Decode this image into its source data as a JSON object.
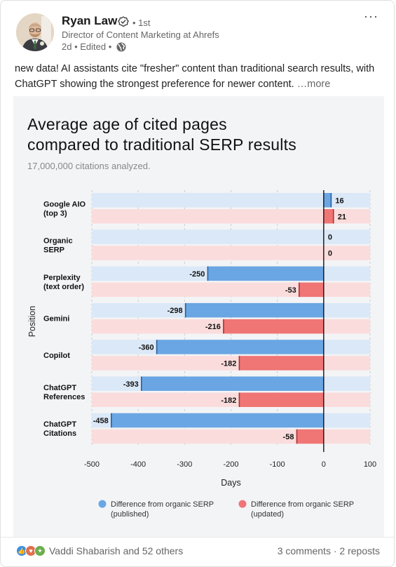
{
  "post": {
    "author": "Ryan Law",
    "degree": "• 1st",
    "headline": "Director of Content Marketing at Ahrefs",
    "meta": "2d • Edited •",
    "text": "new data! AI assistants cite \"fresher\" content than traditional search results, with ChatGPT showing the strongest preference for newer content.",
    "see_more": "…more"
  },
  "chart": {
    "title_line1": "Average age of cited pages",
    "title_line2": "compared to traditional SERP results",
    "subtitle": "17,000,000 citations analyzed."
  },
  "chart_data": {
    "type": "bar",
    "orientation": "horizontal",
    "title": "Average age of cited pages compared to traditional SERP results",
    "subtitle": "17,000,000 citations analyzed.",
    "xlabel": "Days",
    "ylabel": "Position",
    "xlim": [
      -500,
      100
    ],
    "xticks": [
      -500,
      -400,
      -300,
      -200,
      -100,
      0,
      100
    ],
    "grid": true,
    "legend": "bottom",
    "categories": [
      "Google AIO\n(top 3)",
      "Organic\nSERP",
      "Perplexity\n(text order)",
      "Gemini",
      "Copilot",
      "ChatGPT\nReferences",
      "ChatGPT\nCitations"
    ],
    "series": [
      {
        "name": "Difference from organic SERP\n(published)",
        "color": "#6aa6e3",
        "track": "#dbe8f7",
        "values": [
          16,
          0,
          -250,
          -298,
          -360,
          -393,
          -458
        ]
      },
      {
        "name": "Difference from organic SERP\n(updated)",
        "color": "#f07575",
        "track": "#fbdcdc",
        "values": [
          21,
          0,
          -53,
          -216,
          -182,
          -182,
          -58
        ]
      }
    ]
  },
  "footer": {
    "reactions": "Vaddi Shabarish and 52 others",
    "comments": "3 comments",
    "reposts": "2 reposts"
  },
  "colors": {
    "brand_blue": "#0a66c2",
    "chart_bg": "#f3f4f6"
  }
}
